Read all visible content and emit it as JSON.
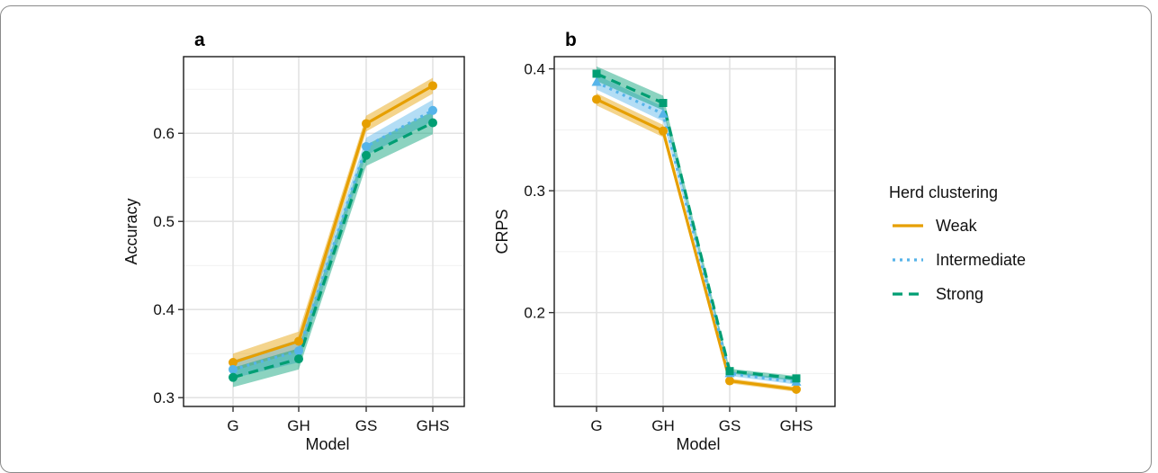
{
  "chart_data": [
    {
      "panel_label": "a",
      "type": "line",
      "categories": [
        "G",
        "GH",
        "GS",
        "GHS"
      ],
      "xlabel": "Model",
      "ylabel": "Accuracy",
      "ylim": [
        0.29,
        0.687
      ],
      "yticks": [
        0.3,
        0.4,
        0.5,
        0.6
      ],
      "ytick_labels": [
        "0.3",
        "0.4",
        "0.5",
        "0.6"
      ],
      "grid": true,
      "series": [
        {
          "name": "Weak",
          "values": [
            0.34,
            0.364,
            0.611,
            0.654
          ],
          "lower": [
            0.33,
            0.353,
            0.602,
            0.645
          ],
          "upper": [
            0.35,
            0.375,
            0.62,
            0.663
          ]
        },
        {
          "name": "Intermediate",
          "values": [
            0.332,
            0.353,
            0.585,
            0.626
          ],
          "lower": [
            0.322,
            0.34,
            0.575,
            0.614
          ],
          "upper": [
            0.342,
            0.366,
            0.595,
            0.638
          ]
        },
        {
          "name": "Strong",
          "values": [
            0.323,
            0.344,
            0.575,
            0.612
          ],
          "lower": [
            0.312,
            0.332,
            0.563,
            0.599
          ],
          "upper": [
            0.334,
            0.356,
            0.587,
            0.625
          ]
        }
      ]
    },
    {
      "panel_label": "b",
      "type": "line",
      "categories": [
        "G",
        "GH",
        "GS",
        "GHS"
      ],
      "xlabel": "Model",
      "ylabel": "CRPS",
      "ylim": [
        0.123,
        0.41
      ],
      "yticks": [
        0.2,
        0.3,
        0.4
      ],
      "ytick_labels": [
        "0.2",
        "0.3",
        "0.4"
      ],
      "grid": true,
      "series": [
        {
          "name": "Weak",
          "values": [
            0.375,
            0.349,
            0.144,
            0.137
          ],
          "lower": [
            0.37,
            0.344,
            0.142,
            0.135
          ],
          "upper": [
            0.38,
            0.354,
            0.146,
            0.139
          ]
        },
        {
          "name": "Intermediate",
          "values": [
            0.389,
            0.363,
            0.15,
            0.143
          ],
          "lower": [
            0.383,
            0.357,
            0.148,
            0.141
          ],
          "upper": [
            0.395,
            0.369,
            0.152,
            0.145
          ]
        },
        {
          "name": "Strong",
          "values": [
            0.396,
            0.372,
            0.152,
            0.146
          ],
          "lower": [
            0.39,
            0.366,
            0.15,
            0.144
          ],
          "upper": [
            0.402,
            0.378,
            0.154,
            0.148
          ]
        }
      ]
    }
  ],
  "legend": {
    "title": "Herd clustering",
    "placement": "right",
    "items": [
      {
        "label": "Weak",
        "color": "#E69F00",
        "dash": "solid"
      },
      {
        "label": "Intermediate",
        "color": "#56B4E9",
        "dash": "dotted"
      },
      {
        "label": "Strong",
        "color": "#009E73",
        "dash": "dashed"
      }
    ]
  }
}
